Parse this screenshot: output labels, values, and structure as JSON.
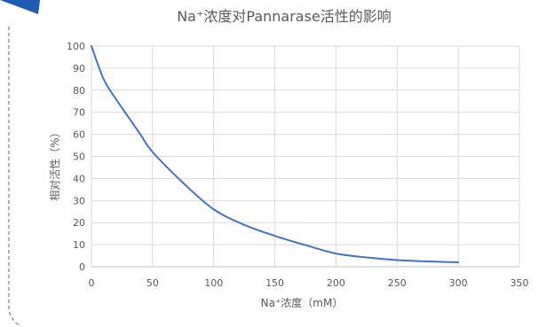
{
  "colors": {
    "line": "#4472C4",
    "grid": "#D9D9D9",
    "axis": "#BFBFBF",
    "text": "#595959",
    "corner_mark": "#1D5BB5",
    "dashed_border": "#7F7F7F"
  },
  "chart_data": {
    "type": "line",
    "title": "Na⁺浓度对Pannarase活性的影响",
    "xlabel": "Na⁺浓度（mM）",
    "ylabel": "相对活性（%）",
    "xlim": [
      0,
      350
    ],
    "ylim": [
      0,
      100
    ],
    "x_ticks": [
      "0",
      "50",
      "100",
      "150",
      "200",
      "250",
      "300",
      "350"
    ],
    "y_ticks": [
      "0",
      "10",
      "20",
      "30",
      "40",
      "50",
      "60",
      "70",
      "80",
      "90",
      "100"
    ],
    "grid": true,
    "legend": "none",
    "series": [
      {
        "x": [
          0,
          10,
          20,
          30,
          40,
          50,
          75,
          100,
          125,
          150,
          175,
          200,
          225,
          250,
          275,
          300
        ],
        "y": [
          100,
          85,
          76,
          68,
          60,
          52,
          38,
          26,
          19,
          14,
          9.8,
          6,
          4.2,
          3,
          2.4,
          2
        ]
      }
    ]
  }
}
